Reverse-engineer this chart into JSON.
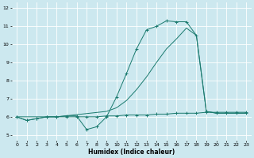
{
  "xlabel": "Humidex (Indice chaleur)",
  "background_color": "#cce8ef",
  "grid_color": "#ffffff",
  "line_color": "#1a7a6e",
  "xlim": [
    -0.5,
    23.5
  ],
  "ylim": [
    4.7,
    12.3
  ],
  "xticks": [
    0,
    1,
    2,
    3,
    4,
    5,
    6,
    7,
    8,
    9,
    10,
    11,
    12,
    13,
    14,
    15,
    16,
    17,
    18,
    19,
    20,
    21,
    22,
    23
  ],
  "yticks": [
    5,
    6,
    7,
    8,
    9,
    10,
    11,
    12
  ],
  "series1_x": [
    0,
    1,
    2,
    3,
    4,
    5,
    6,
    7,
    8,
    9,
    10,
    11,
    12,
    13,
    14,
    15,
    16,
    17,
    18,
    19,
    20,
    21,
    22,
    23
  ],
  "series1_y": [
    6.0,
    5.8,
    5.9,
    6.0,
    6.0,
    6.05,
    6.05,
    5.3,
    5.45,
    6.0,
    7.1,
    8.4,
    9.75,
    10.8,
    11.0,
    11.3,
    11.25,
    11.25,
    10.5,
    6.3,
    6.2,
    6.2,
    6.2,
    6.2
  ],
  "series2_x": [
    0,
    1,
    2,
    3,
    4,
    5,
    6,
    7,
    8,
    9,
    10,
    11,
    12,
    13,
    14,
    15,
    16,
    17,
    18,
    19,
    20,
    21,
    22,
    23
  ],
  "series2_y": [
    6.0,
    5.8,
    5.9,
    6.0,
    6.0,
    6.0,
    6.0,
    6.0,
    6.0,
    6.05,
    6.05,
    6.1,
    6.1,
    6.1,
    6.15,
    6.15,
    6.2,
    6.2,
    6.2,
    6.25,
    6.25,
    6.25,
    6.25,
    6.25
  ],
  "series3_x": [
    0,
    4,
    9,
    10,
    11,
    12,
    13,
    14,
    15,
    16,
    17,
    18,
    19,
    20,
    21,
    22,
    23
  ],
  "series3_y": [
    6.0,
    6.0,
    6.3,
    6.5,
    6.9,
    7.5,
    8.2,
    9.0,
    9.75,
    10.3,
    10.9,
    10.5,
    6.3,
    6.2,
    6.2,
    6.2,
    6.2
  ],
  "xlabel_fontsize": 5.5,
  "tick_fontsize": 4.5
}
